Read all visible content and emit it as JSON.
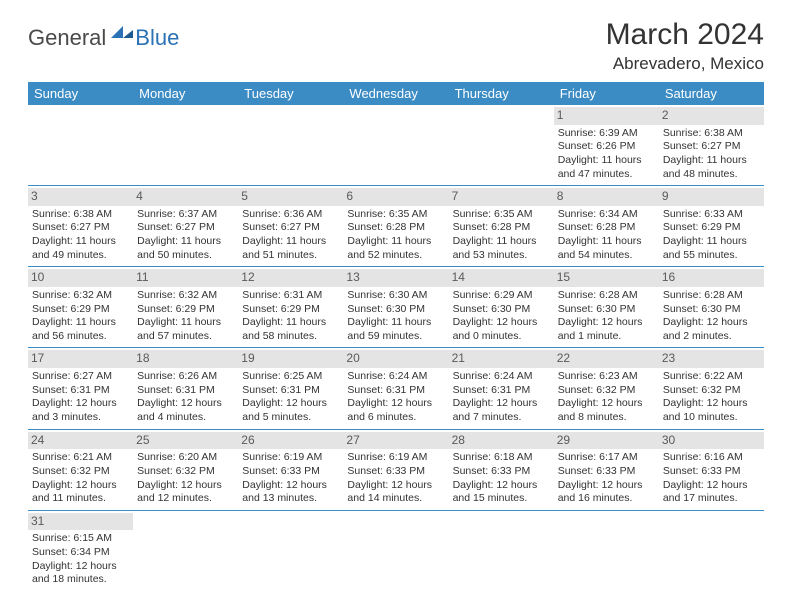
{
  "logo": {
    "general": "General",
    "blue": "Blue"
  },
  "title": "March 2024",
  "location": "Abrevadero, Mexico",
  "colors": {
    "header_bg": "#3b8bc5",
    "header_text": "#ffffff",
    "daynum_bg": "#e4e4e4",
    "border": "#3b8bc5",
    "logo_blue": "#2a72b5"
  },
  "day_headers": [
    "Sunday",
    "Monday",
    "Tuesday",
    "Wednesday",
    "Thursday",
    "Friday",
    "Saturday"
  ],
  "weeks": [
    [
      null,
      null,
      null,
      null,
      null,
      {
        "n": "1",
        "sr": "Sunrise: 6:39 AM",
        "ss": "Sunset: 6:26 PM",
        "d1": "Daylight: 11 hours",
        "d2": "and 47 minutes."
      },
      {
        "n": "2",
        "sr": "Sunrise: 6:38 AM",
        "ss": "Sunset: 6:27 PM",
        "d1": "Daylight: 11 hours",
        "d2": "and 48 minutes."
      }
    ],
    [
      {
        "n": "3",
        "sr": "Sunrise: 6:38 AM",
        "ss": "Sunset: 6:27 PM",
        "d1": "Daylight: 11 hours",
        "d2": "and 49 minutes."
      },
      {
        "n": "4",
        "sr": "Sunrise: 6:37 AM",
        "ss": "Sunset: 6:27 PM",
        "d1": "Daylight: 11 hours",
        "d2": "and 50 minutes."
      },
      {
        "n": "5",
        "sr": "Sunrise: 6:36 AM",
        "ss": "Sunset: 6:27 PM",
        "d1": "Daylight: 11 hours",
        "d2": "and 51 minutes."
      },
      {
        "n": "6",
        "sr": "Sunrise: 6:35 AM",
        "ss": "Sunset: 6:28 PM",
        "d1": "Daylight: 11 hours",
        "d2": "and 52 minutes."
      },
      {
        "n": "7",
        "sr": "Sunrise: 6:35 AM",
        "ss": "Sunset: 6:28 PM",
        "d1": "Daylight: 11 hours",
        "d2": "and 53 minutes."
      },
      {
        "n": "8",
        "sr": "Sunrise: 6:34 AM",
        "ss": "Sunset: 6:28 PM",
        "d1": "Daylight: 11 hours",
        "d2": "and 54 minutes."
      },
      {
        "n": "9",
        "sr": "Sunrise: 6:33 AM",
        "ss": "Sunset: 6:29 PM",
        "d1": "Daylight: 11 hours",
        "d2": "and 55 minutes."
      }
    ],
    [
      {
        "n": "10",
        "sr": "Sunrise: 6:32 AM",
        "ss": "Sunset: 6:29 PM",
        "d1": "Daylight: 11 hours",
        "d2": "and 56 minutes."
      },
      {
        "n": "11",
        "sr": "Sunrise: 6:32 AM",
        "ss": "Sunset: 6:29 PM",
        "d1": "Daylight: 11 hours",
        "d2": "and 57 minutes."
      },
      {
        "n": "12",
        "sr": "Sunrise: 6:31 AM",
        "ss": "Sunset: 6:29 PM",
        "d1": "Daylight: 11 hours",
        "d2": "and 58 minutes."
      },
      {
        "n": "13",
        "sr": "Sunrise: 6:30 AM",
        "ss": "Sunset: 6:30 PM",
        "d1": "Daylight: 11 hours",
        "d2": "and 59 minutes."
      },
      {
        "n": "14",
        "sr": "Sunrise: 6:29 AM",
        "ss": "Sunset: 6:30 PM",
        "d1": "Daylight: 12 hours",
        "d2": "and 0 minutes."
      },
      {
        "n": "15",
        "sr": "Sunrise: 6:28 AM",
        "ss": "Sunset: 6:30 PM",
        "d1": "Daylight: 12 hours",
        "d2": "and 1 minute."
      },
      {
        "n": "16",
        "sr": "Sunrise: 6:28 AM",
        "ss": "Sunset: 6:30 PM",
        "d1": "Daylight: 12 hours",
        "d2": "and 2 minutes."
      }
    ],
    [
      {
        "n": "17",
        "sr": "Sunrise: 6:27 AM",
        "ss": "Sunset: 6:31 PM",
        "d1": "Daylight: 12 hours",
        "d2": "and 3 minutes."
      },
      {
        "n": "18",
        "sr": "Sunrise: 6:26 AM",
        "ss": "Sunset: 6:31 PM",
        "d1": "Daylight: 12 hours",
        "d2": "and 4 minutes."
      },
      {
        "n": "19",
        "sr": "Sunrise: 6:25 AM",
        "ss": "Sunset: 6:31 PM",
        "d1": "Daylight: 12 hours",
        "d2": "and 5 minutes."
      },
      {
        "n": "20",
        "sr": "Sunrise: 6:24 AM",
        "ss": "Sunset: 6:31 PM",
        "d1": "Daylight: 12 hours",
        "d2": "and 6 minutes."
      },
      {
        "n": "21",
        "sr": "Sunrise: 6:24 AM",
        "ss": "Sunset: 6:31 PM",
        "d1": "Daylight: 12 hours",
        "d2": "and 7 minutes."
      },
      {
        "n": "22",
        "sr": "Sunrise: 6:23 AM",
        "ss": "Sunset: 6:32 PM",
        "d1": "Daylight: 12 hours",
        "d2": "and 8 minutes."
      },
      {
        "n": "23",
        "sr": "Sunrise: 6:22 AM",
        "ss": "Sunset: 6:32 PM",
        "d1": "Daylight: 12 hours",
        "d2": "and 10 minutes."
      }
    ],
    [
      {
        "n": "24",
        "sr": "Sunrise: 6:21 AM",
        "ss": "Sunset: 6:32 PM",
        "d1": "Daylight: 12 hours",
        "d2": "and 11 minutes."
      },
      {
        "n": "25",
        "sr": "Sunrise: 6:20 AM",
        "ss": "Sunset: 6:32 PM",
        "d1": "Daylight: 12 hours",
        "d2": "and 12 minutes."
      },
      {
        "n": "26",
        "sr": "Sunrise: 6:19 AM",
        "ss": "Sunset: 6:33 PM",
        "d1": "Daylight: 12 hours",
        "d2": "and 13 minutes."
      },
      {
        "n": "27",
        "sr": "Sunrise: 6:19 AM",
        "ss": "Sunset: 6:33 PM",
        "d1": "Daylight: 12 hours",
        "d2": "and 14 minutes."
      },
      {
        "n": "28",
        "sr": "Sunrise: 6:18 AM",
        "ss": "Sunset: 6:33 PM",
        "d1": "Daylight: 12 hours",
        "d2": "and 15 minutes."
      },
      {
        "n": "29",
        "sr": "Sunrise: 6:17 AM",
        "ss": "Sunset: 6:33 PM",
        "d1": "Daylight: 12 hours",
        "d2": "and 16 minutes."
      },
      {
        "n": "30",
        "sr": "Sunrise: 6:16 AM",
        "ss": "Sunset: 6:33 PM",
        "d1": "Daylight: 12 hours",
        "d2": "and 17 minutes."
      }
    ],
    [
      {
        "n": "31",
        "sr": "Sunrise: 6:15 AM",
        "ss": "Sunset: 6:34 PM",
        "d1": "Daylight: 12 hours",
        "d2": "and 18 minutes."
      },
      null,
      null,
      null,
      null,
      null,
      null
    ]
  ]
}
